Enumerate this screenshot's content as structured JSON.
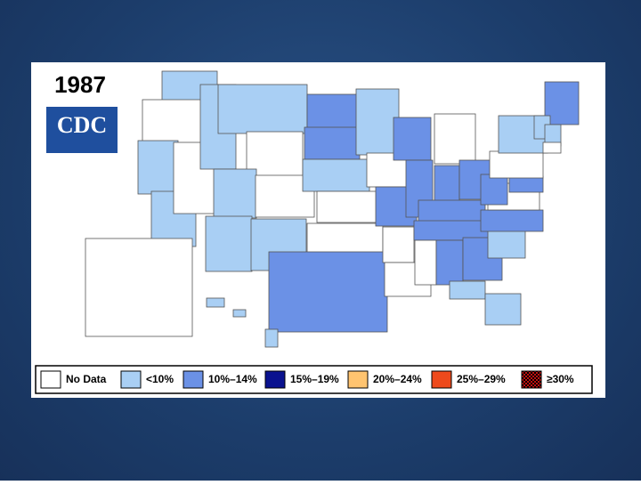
{
  "title": "1987",
  "logo": "CDC",
  "legend": [
    {
      "label": "No Data",
      "color": "#ffffff"
    },
    {
      "label": "<10%",
      "color": "#a9cff4"
    },
    {
      "label": "10%–14%",
      "color": "#6b91e6"
    },
    {
      "label": "15%–19%",
      "color": "#0a128f"
    },
    {
      "label": "20%–24%",
      "color": "#ffc470"
    },
    {
      "label": "25%–29%",
      "color": "#ee4a1c"
    },
    {
      "label": "≥30%",
      "color": "#8f0a0a"
    }
  ]
}
